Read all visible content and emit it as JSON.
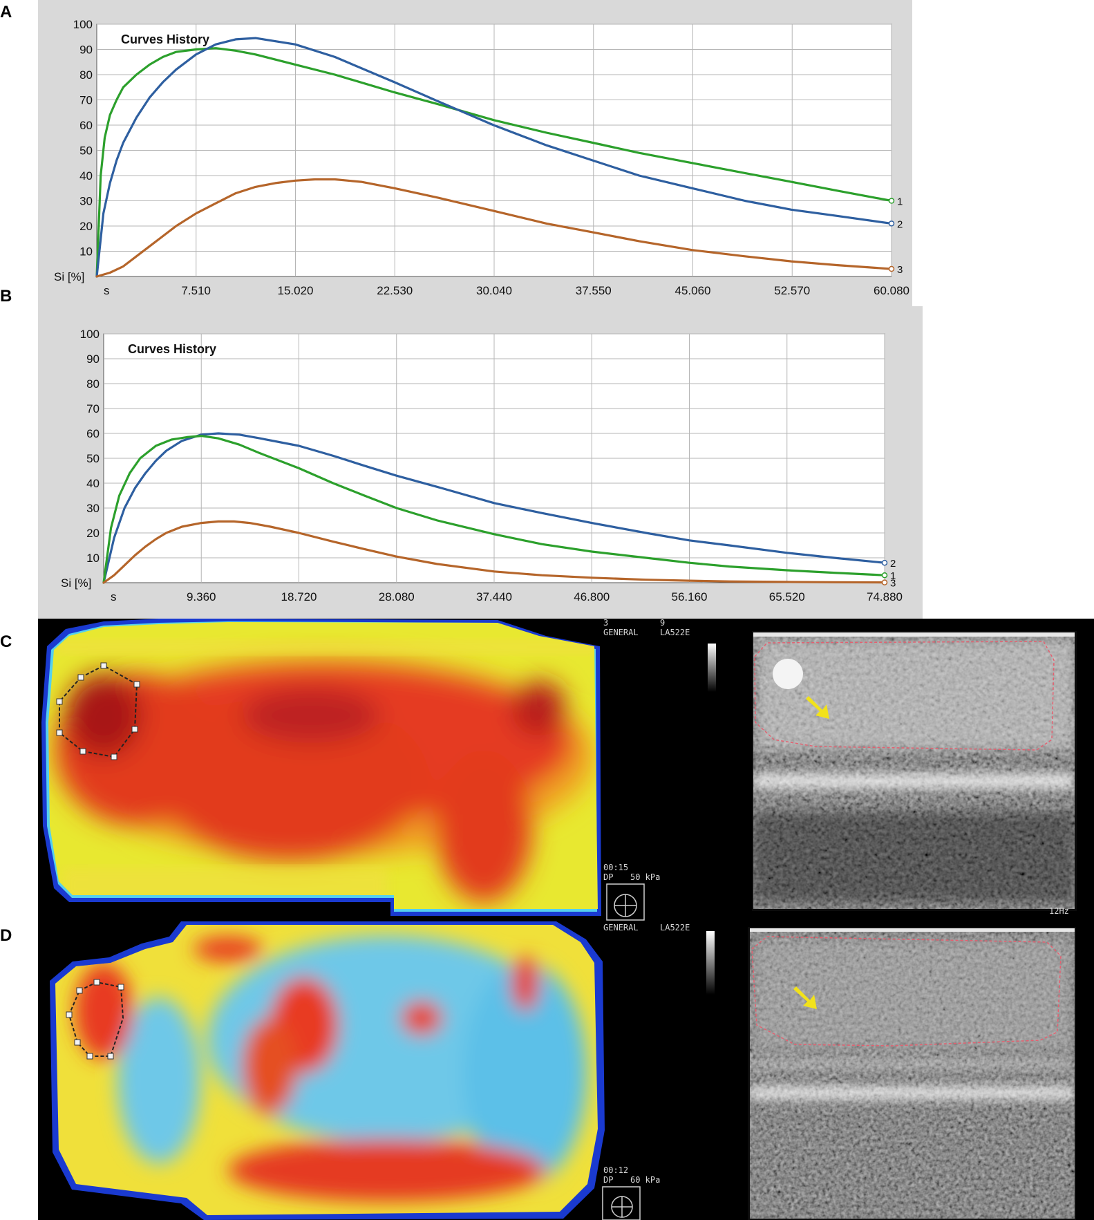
{
  "panels": [
    "A",
    "B",
    "C",
    "D"
  ],
  "chart_data": [
    {
      "panel": "A",
      "type": "line",
      "title": "Curves History",
      "ylabel": "Si [%]",
      "xlabel": "s",
      "ylim": [
        0,
        100
      ],
      "yticks": [
        "10",
        "20",
        "30",
        "40",
        "50",
        "60",
        "70",
        "80",
        "90",
        "100"
      ],
      "xlim": [
        0,
        60.08
      ],
      "xtick_values": [
        7.51,
        15.02,
        22.53,
        30.04,
        37.55,
        45.06,
        52.57,
        60.08
      ],
      "xticks": [
        "7.510",
        "15.020",
        "22.530",
        "30.040",
        "37.550",
        "45.060",
        "52.570",
        "60.080"
      ],
      "grid": true,
      "series": [
        {
          "name": "1",
          "color": "#2ca02c",
          "x": [
            0,
            0.3,
            0.6,
            1,
            1.5,
            2,
            3,
            4,
            5,
            6,
            7.5,
            9,
            10.5,
            12,
            15,
            18,
            22.5,
            26,
            30,
            34,
            37.5,
            41,
            45,
            49,
            52.5,
            56,
            60.08
          ],
          "y": [
            0,
            40,
            55,
            64,
            70,
            75,
            80,
            84,
            87,
            89,
            90,
            90.5,
            89.5,
            88,
            84,
            80,
            73,
            68,
            62,
            57,
            53,
            49,
            45,
            41,
            37.5,
            34,
            30
          ]
        },
        {
          "name": "2",
          "color": "#2e5fa0",
          "x": [
            0,
            0.5,
            1,
            1.5,
            2,
            3,
            4,
            5,
            6,
            7.5,
            9,
            10.5,
            12,
            15,
            18,
            22.5,
            26,
            30,
            34,
            37.5,
            41,
            45,
            49,
            52.5,
            56,
            60.08
          ],
          "y": [
            0,
            25,
            37,
            46,
            53,
            63,
            71,
            77,
            82,
            88,
            92,
            94,
            94.5,
            92,
            87,
            77,
            69,
            60,
            52,
            46,
            40,
            35,
            30,
            26.5,
            24,
            21
          ]
        },
        {
          "name": "3",
          "color": "#b5652a",
          "x": [
            0,
            1,
            2,
            3,
            4,
            5,
            6,
            7.5,
            9,
            10.5,
            12,
            13.5,
            15,
            16.5,
            18,
            20,
            22.5,
            26,
            30,
            34,
            37.5,
            41,
            45,
            49,
            52.5,
            56,
            60.08
          ],
          "y": [
            0,
            1.5,
            4,
            8,
            12,
            16,
            20,
            25,
            29,
            33,
            35.5,
            37,
            38,
            38.5,
            38.5,
            37.5,
            35,
            31,
            26,
            21,
            17.5,
            14,
            10.5,
            8,
            6,
            4.5,
            3
          ]
        }
      ]
    },
    {
      "panel": "B",
      "type": "line",
      "title": "Curves History",
      "ylabel": "Si [%]",
      "xlabel": "s",
      "ylim": [
        0,
        100
      ],
      "yticks": [
        "10",
        "20",
        "30",
        "40",
        "50",
        "60",
        "70",
        "80",
        "90",
        "100"
      ],
      "xlim": [
        0,
        74.88
      ],
      "xtick_values": [
        9.36,
        18.72,
        28.08,
        37.44,
        46.8,
        56.16,
        65.52,
        74.88
      ],
      "xticks": [
        "9.360",
        "18.720",
        "28.080",
        "37.440",
        "46.800",
        "56.160",
        "65.520",
        "74.880"
      ],
      "grid": true,
      "series": [
        {
          "name": "2",
          "color": "#2e5fa0",
          "x": [
            0,
            1,
            2,
            3,
            4,
            5,
            6,
            7.5,
            9.36,
            11,
            13,
            15,
            18.72,
            22,
            25,
            28.08,
            32,
            37.44,
            42,
            46.8,
            52,
            56.16,
            60,
            65.52,
            70,
            74.88
          ],
          "y": [
            0,
            18,
            30,
            38,
            44,
            49,
            53,
            57,
            59.5,
            60,
            59.5,
            58,
            55,
            51,
            47,
            43,
            38.5,
            32,
            28,
            24,
            20,
            17,
            15,
            12,
            10,
            8
          ]
        },
        {
          "name": "1",
          "color": "#2ca02c",
          "x": [
            0,
            0.7,
            1.5,
            2.5,
            3.5,
            5,
            6.5,
            8,
            9.36,
            11,
            13,
            15,
            18.72,
            22,
            25,
            28.08,
            32,
            37.44,
            42,
            46.8,
            52,
            56.16,
            60,
            65.52,
            70,
            74.88
          ],
          "y": [
            0,
            22,
            35,
            44,
            50,
            55,
            57.5,
            58.5,
            59,
            58,
            55.5,
            52,
            46,
            40,
            35,
            30,
            25,
            19.5,
            15.5,
            12.5,
            10,
            8,
            6.5,
            5,
            4,
            3
          ]
        },
        {
          "name": "3",
          "color": "#b5652a",
          "x": [
            0,
            1,
            2,
            3,
            4,
            5,
            6,
            7.5,
            9.36,
            11,
            12.5,
            14,
            16,
            18.72,
            22,
            25,
            28.08,
            32,
            37.44,
            42,
            46.8,
            52,
            56.16,
            60,
            65.52,
            70,
            74.88
          ],
          "y": [
            0,
            3,
            7,
            11,
            14.5,
            17.5,
            20,
            22.5,
            24,
            24.6,
            24.6,
            24,
            22.5,
            20,
            16.5,
            13.5,
            10.5,
            7.5,
            4.5,
            3,
            2,
            1.2,
            0.8,
            0.5,
            0.3,
            0.2,
            0.1
          ]
        }
      ]
    }
  ],
  "panel_c": {
    "overlay_lines": [
      "3",
      "9",
      "GENERAL",
      "LA522E"
    ],
    "time": "00:15",
    "dp": "DP",
    "kpa": "50 kPa",
    "rate": "12Hz"
  },
  "panel_d": {
    "overlay_lines": [
      "GENERAL",
      "LA522E"
    ],
    "time": "00:12",
    "dp": "DP",
    "kpa": "60 kPa"
  },
  "colors": {
    "chart_bg": "#d9d9d9",
    "plot_bg": "#ffffff",
    "grid": "#b0b0b0",
    "series_green": "#2ca02c",
    "series_blue": "#2e5fa0",
    "series_orange": "#b5652a",
    "arrow": "#f2e21a",
    "roi": "#e04a5a"
  }
}
